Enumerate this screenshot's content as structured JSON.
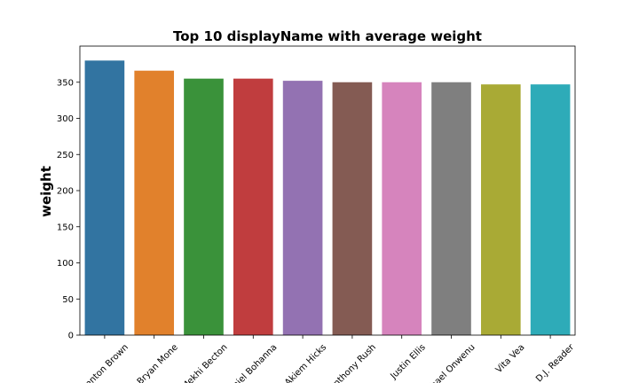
{
  "chart_data": {
    "type": "bar",
    "title": "Top 10 displayName with average weight",
    "xlabel": "",
    "ylabel": "weight",
    "ylim": [
      0,
      400
    ],
    "yticks": [
      0,
      50,
      100,
      150,
      200,
      250,
      300,
      350
    ],
    "categories": [
      "Trenton Brown",
      "Bryan Mone",
      "Mekhi Becton",
      "Daniel Bohanna",
      "Akiem Hicks",
      "Anthony Rush",
      "Justin Ellis",
      "Michael Onwenu",
      "Vita Vea",
      "D.J. Reader"
    ],
    "values": [
      380,
      366,
      355,
      355,
      352,
      350,
      350,
      350,
      347,
      347
    ],
    "colors": [
      "#3274a1",
      "#e1812c",
      "#3a923a",
      "#c03d3e",
      "#9372b2",
      "#845b53",
      "#d684bd",
      "#7f7f7f",
      "#a9aa35",
      "#2eabb8"
    ],
    "grid": false,
    "legend": false,
    "tick_label_rotation": 45
  }
}
